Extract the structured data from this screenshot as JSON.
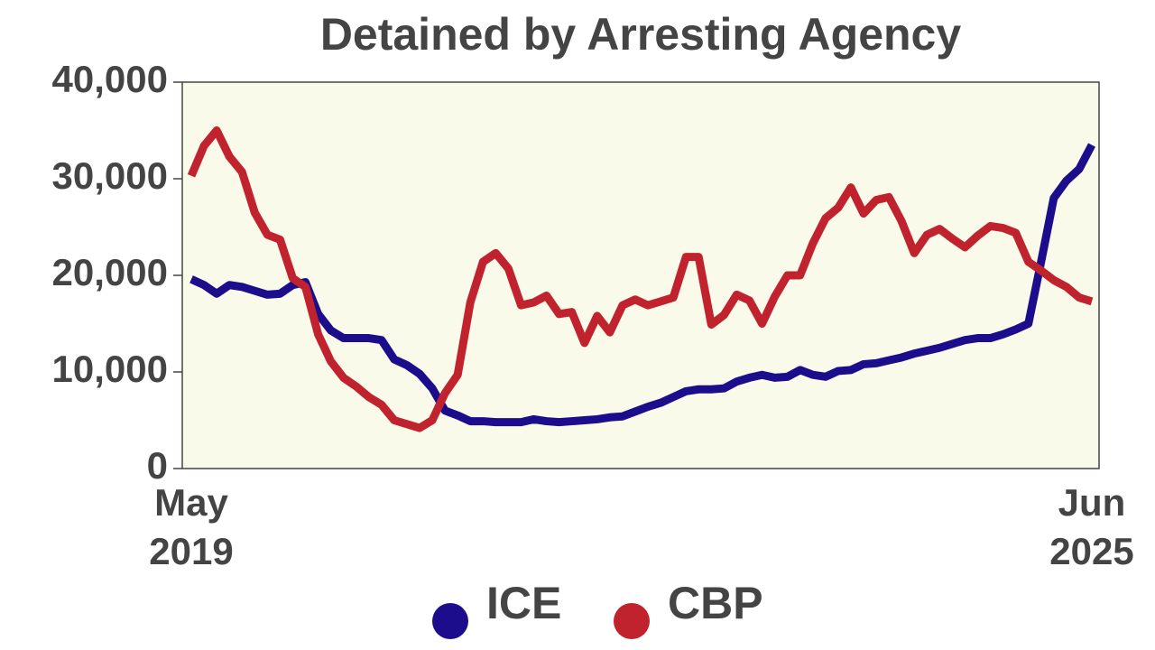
{
  "chart_data": {
    "type": "line",
    "title": "Detained by Arresting Agency",
    "categories": [
      "May 2019",
      null,
      null,
      null,
      null,
      null,
      null,
      null,
      null,
      null,
      null,
      null,
      null,
      null,
      null,
      null,
      null,
      null,
      null,
      null,
      null,
      null,
      null,
      null,
      null,
      null,
      null,
      null,
      null,
      null,
      null,
      null,
      null,
      null,
      null,
      null,
      null,
      null,
      null,
      null,
      null,
      null,
      null,
      null,
      null,
      null,
      null,
      null,
      null,
      null,
      null,
      null,
      null,
      null,
      null,
      null,
      null,
      null,
      null,
      null,
      null,
      null,
      null,
      null,
      null,
      null,
      null,
      null,
      null,
      null,
      null,
      "Jun 2025"
    ],
    "series": [
      {
        "name": "ICE",
        "color": "#1c0d8c",
        "values": [
          19600,
          19000,
          18100,
          19000,
          18800,
          18400,
          18000,
          18100,
          19000,
          19300,
          16000,
          14300,
          13500,
          13500,
          13500,
          13300,
          11300,
          10700,
          9800,
          8300,
          6000,
          5500,
          4900,
          4900,
          4800,
          4800,
          4800,
          5100,
          4900,
          4800,
          4900,
          5000,
          5100,
          5300,
          5400,
          5900,
          6400,
          6800,
          7400,
          8000,
          8200,
          8200,
          8300,
          9000,
          9400,
          9700,
          9400,
          9500,
          10200,
          9700,
          9500,
          10100,
          10200,
          10800,
          10900,
          11200,
          11500,
          11900,
          12200,
          12500,
          12900,
          13300,
          13500,
          13500,
          13900,
          14400,
          15000,
          21400,
          28000,
          29800,
          31000,
          33500
        ]
      },
      {
        "name": "CBP",
        "color": "#c1232e",
        "values": [
          30300,
          33400,
          35000,
          32300,
          30700,
          26500,
          24200,
          23700,
          19700,
          18800,
          13900,
          11100,
          9400,
          8500,
          7400,
          6600,
          5000,
          4600,
          4200,
          5000,
          7800,
          9700,
          17200,
          21400,
          22300,
          20700,
          16900,
          17200,
          17900,
          16000,
          16200,
          13000,
          15800,
          14100,
          16900,
          17500,
          16900,
          17300,
          17700,
          21900,
          21900,
          14900,
          15900,
          18000,
          17400,
          15000,
          17800,
          20000,
          20000,
          23300,
          25900,
          27000,
          29100,
          26400,
          27800,
          28100,
          25600,
          22300,
          24200,
          24800,
          23800,
          22900,
          24100,
          25100,
          24900,
          24400,
          21400,
          20500,
          19500,
          18800,
          17700,
          17300
        ]
      }
    ],
    "ylim": [
      0,
      40000
    ],
    "yticks": [
      0,
      {
        "value": 10000,
        "label": "10,000"
      },
      {
        "value": 20000,
        "label": "20,000"
      },
      {
        "value": 30000,
        "label": "30,000"
      },
      {
        "value": 40000,
        "label": "40,000"
      }
    ],
    "background": "#fafaea"
  }
}
